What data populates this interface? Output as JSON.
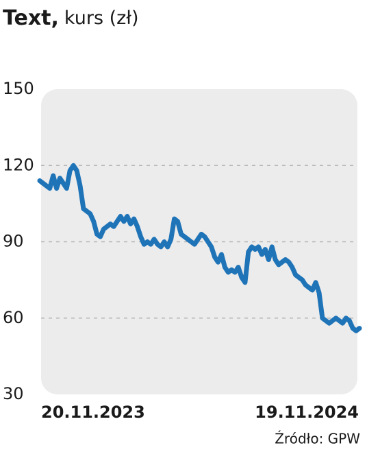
{
  "chart_data": {
    "type": "line",
    "title": "Text,",
    "subtitle": "kurs (zł)",
    "source": "Źródło: GPW",
    "categories": [
      "20.11.2023",
      null,
      null,
      null,
      null,
      null,
      null,
      null,
      null,
      null,
      null,
      null,
      null,
      null,
      null,
      null,
      null,
      null,
      null,
      null,
      null,
      null,
      null,
      null,
      null,
      null,
      null,
      null,
      null,
      null,
      null,
      null,
      null,
      null,
      null,
      null,
      null,
      null,
      null,
      null,
      null,
      null,
      null,
      null,
      null,
      null,
      null,
      null,
      null,
      null,
      null,
      null,
      null,
      null,
      null,
      null,
      null,
      null,
      null,
      null,
      null,
      null,
      null,
      null,
      null,
      null,
      null,
      null,
      null,
      null,
      null,
      null,
      null,
      null,
      null,
      null,
      null,
      null,
      null,
      null,
      null,
      null,
      null,
      null,
      null,
      null,
      null,
      null,
      null,
      null,
      null,
      null,
      null,
      null,
      null,
      "19.11.2024"
    ],
    "series": [
      {
        "name": "Text",
        "color": "#1f74b8",
        "values": [
          114,
          113,
          112,
          111,
          116,
          111,
          115,
          113,
          111,
          118,
          120,
          118,
          112,
          103,
          102,
          101,
          98,
          93,
          92,
          95,
          96,
          97,
          96,
          98,
          100,
          98,
          100,
          97,
          99,
          96,
          92,
          89,
          90,
          89,
          91,
          89,
          88,
          90,
          88,
          91,
          99,
          98,
          93,
          92,
          91,
          90,
          89,
          91,
          93,
          92,
          90,
          88,
          84,
          82,
          85,
          80,
          78,
          79,
          78,
          80,
          76,
          74,
          86,
          88,
          87,
          88,
          85,
          87,
          83,
          88,
          83,
          81,
          82,
          83,
          82,
          80,
          77,
          76,
          75,
          73,
          72,
          71,
          74,
          70,
          60,
          59,
          58,
          59,
          60,
          59,
          58,
          60,
          59,
          56,
          55,
          56
        ]
      }
    ],
    "ylim": [
      30,
      150
    ],
    "yticks": [
      30,
      60,
      90,
      120,
      150
    ],
    "grid": true
  }
}
